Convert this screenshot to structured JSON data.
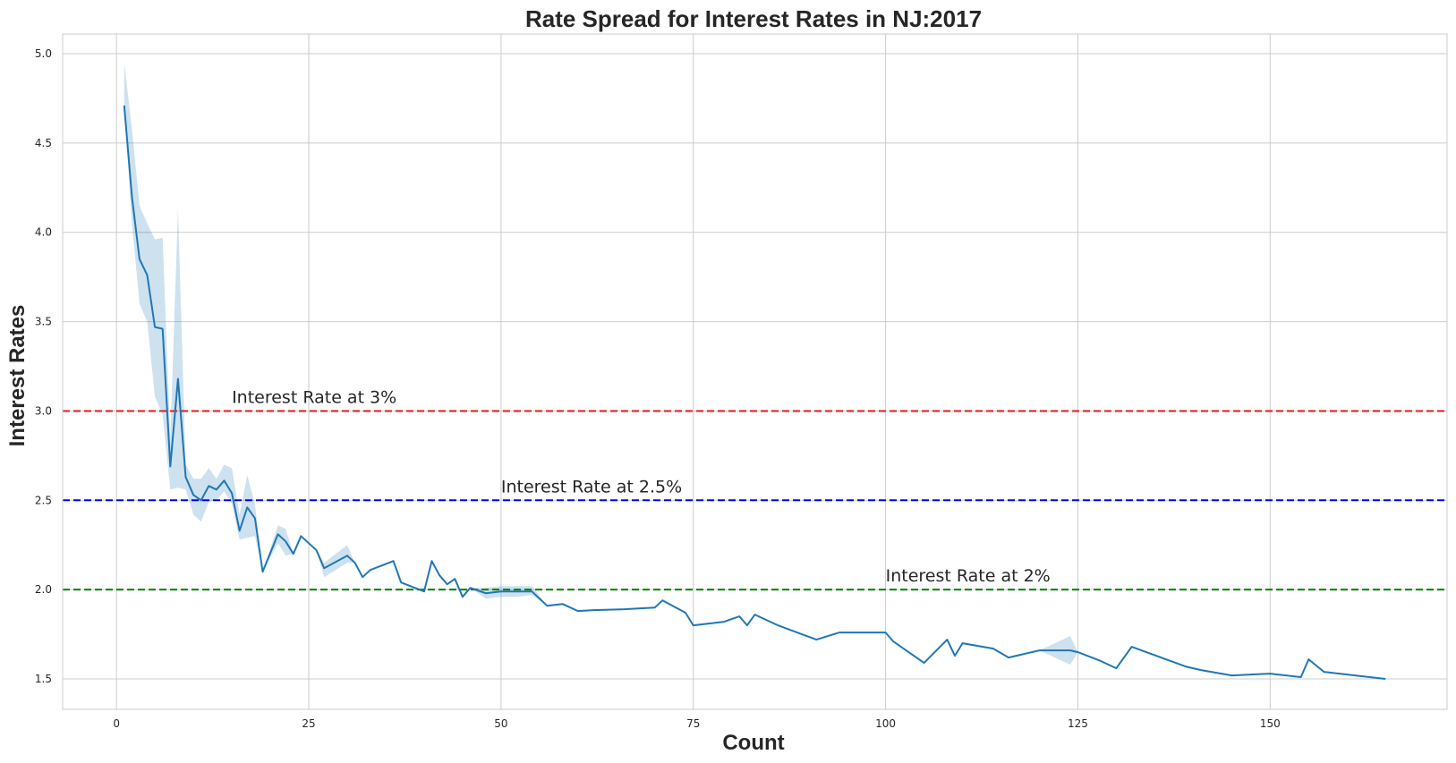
{
  "chart_data": {
    "type": "line",
    "title": "Rate Spread for Interest Rates in NJ:2017",
    "xlabel": "Count",
    "ylabel": "Interest Rates",
    "xlim": [
      -7,
      173
    ],
    "ylim": [
      1.33,
      5.11
    ],
    "x_ticks": [
      0,
      25,
      50,
      75,
      100,
      125,
      150
    ],
    "y_ticks": [
      1.5,
      2.0,
      2.5,
      3.0,
      3.5,
      4.0,
      4.5,
      5.0
    ],
    "y_tick_labels": [
      "1.5",
      "2.0",
      "2.5",
      "3.0",
      "3.5",
      "4.0",
      "4.5",
      "5.0"
    ],
    "grid": true,
    "colors": {
      "line": "#1f77b4",
      "band": "#1f77b4",
      "grid": "#cccccc",
      "frame": "#cccccc"
    },
    "series": [
      {
        "x": [
          1,
          2,
          3,
          4,
          5,
          6,
          7,
          8,
          9,
          10,
          11,
          12,
          13,
          14,
          15,
          16,
          17,
          18,
          19,
          21,
          22,
          23,
          24,
          26,
          27,
          30,
          31,
          32,
          33,
          36,
          37,
          40,
          41,
          42,
          43,
          44,
          45,
          46,
          48,
          50,
          52,
          54,
          56,
          58,
          60,
          62,
          66,
          70,
          71,
          74,
          75,
          79,
          81,
          82,
          83,
          86,
          91,
          94,
          97,
          100,
          101,
          105,
          108,
          109,
          110,
          114,
          116,
          120,
          124,
          125,
          128,
          130,
          132,
          139,
          141,
          145,
          150,
          154,
          155,
          157,
          165
        ],
        "y": [
          4.71,
          4.2,
          3.85,
          3.76,
          3.47,
          3.46,
          2.69,
          3.18,
          2.63,
          2.53,
          2.5,
          2.58,
          2.56,
          2.61,
          2.54,
          2.33,
          2.46,
          2.4,
          2.1,
          2.31,
          2.27,
          2.2,
          2.3,
          2.22,
          2.12,
          2.19,
          2.15,
          2.07,
          2.11,
          2.16,
          2.04,
          1.99,
          2.16,
          2.08,
          2.03,
          2.06,
          1.96,
          2.01,
          1.98,
          1.99,
          1.99,
          1.99,
          1.91,
          1.92,
          1.88,
          1.885,
          1.89,
          1.9,
          1.94,
          1.87,
          1.8,
          1.82,
          1.85,
          1.8,
          1.86,
          1.8,
          1.72,
          1.76,
          1.76,
          1.76,
          1.71,
          1.59,
          1.72,
          1.63,
          1.7,
          1.67,
          1.62,
          1.66,
          1.66,
          1.65,
          1.6,
          1.56,
          1.68,
          1.57,
          1.55,
          1.52,
          1.53,
          1.51,
          1.61,
          1.54,
          1.5
        ],
        "ci_low": [
          4.71,
          4.05,
          3.6,
          3.5,
          3.08,
          2.98,
          2.56,
          2.57,
          2.56,
          2.42,
          2.38,
          2.49,
          2.5,
          2.55,
          2.48,
          2.28,
          2.29,
          2.3,
          2.1,
          2.26,
          2.19,
          2.2,
          2.3,
          2.22,
          2.07,
          2.15,
          2.15,
          2.07,
          2.11,
          2.16,
          2.04,
          1.99,
          2.16,
          2.08,
          2.03,
          2.06,
          1.96,
          2.01,
          1.95,
          1.96,
          1.96,
          1.97,
          1.91,
          1.92,
          1.88,
          1.885,
          1.89,
          1.9,
          1.94,
          1.87,
          1.8,
          1.82,
          1.85,
          1.8,
          1.86,
          1.8,
          1.72,
          1.76,
          1.76,
          1.76,
          1.71,
          1.59,
          1.72,
          1.63,
          1.7,
          1.67,
          1.62,
          1.66,
          1.58,
          1.65,
          1.6,
          1.56,
          1.68,
          1.57,
          1.55,
          1.52,
          1.53,
          1.51,
          1.61,
          1.54,
          1.5
        ],
        "ci_high": [
          4.95,
          4.58,
          4.15,
          4.05,
          3.96,
          3.97,
          2.85,
          4.13,
          2.7,
          2.62,
          2.62,
          2.68,
          2.62,
          2.7,
          2.68,
          2.42,
          2.64,
          2.48,
          2.1,
          2.36,
          2.34,
          2.2,
          2.3,
          2.22,
          2.15,
          2.25,
          2.15,
          2.07,
          2.11,
          2.16,
          2.04,
          1.99,
          2.16,
          2.08,
          2.03,
          2.06,
          1.96,
          2.01,
          2.01,
          2.02,
          2.02,
          2.02,
          1.91,
          1.92,
          1.88,
          1.885,
          1.89,
          1.9,
          1.94,
          1.87,
          1.8,
          1.82,
          1.85,
          1.8,
          1.86,
          1.8,
          1.72,
          1.76,
          1.76,
          1.76,
          1.71,
          1.59,
          1.72,
          1.63,
          1.7,
          1.67,
          1.62,
          1.66,
          1.74,
          1.65,
          1.6,
          1.56,
          1.68,
          1.57,
          1.55,
          1.52,
          1.53,
          1.51,
          1.61,
          1.54,
          1.5
        ]
      }
    ],
    "reference_lines": [
      {
        "y": 3.0,
        "color": "#e31a1c",
        "label": "Interest Rate at 3%",
        "label_x": 15
      },
      {
        "y": 2.5,
        "color": "#0000ee",
        "label": "Interest Rate at 2.5%",
        "label_x": 50
      },
      {
        "y": 2.0,
        "color": "#008000",
        "label": "Interest Rate at 2%",
        "label_x": 100
      }
    ]
  }
}
